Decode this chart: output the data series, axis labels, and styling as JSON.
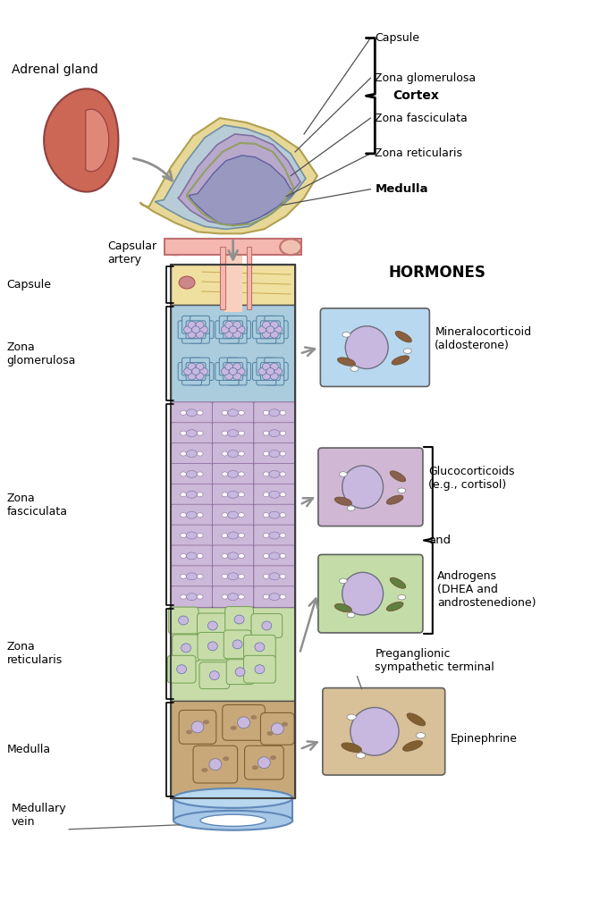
{
  "bg_color": "#ffffff",
  "labels": {
    "adrenal_gland": "Adrenal gland",
    "capsule_top": "Capsule",
    "zona_glomerulosa_top": "Zona glomerulosa",
    "zona_fasciculata_top": "Zona fasciculata",
    "cortex": "Cortex",
    "zona_reticularis_top": "Zona reticularis",
    "medulla_top": "Medulla",
    "capsular_artery": "Capsular\nartery",
    "hormones_title": "HORMONES",
    "capsule_side": "Capsule",
    "zona_glomerulosa_side": "Zona\nglomerulosa",
    "zona_fasciculata_side": "Zona\nfasciculata",
    "zona_reticularis_side": "Zona\nreticularis",
    "medulla_side": "Medulla",
    "medullary_vein": "Medullary\nvein",
    "mineralocorticoid": "Mineralocorticoid\n(aldosterone)",
    "glucocorticoids": "Glucocorticoids\n(e.g., cortisol)",
    "and_text": "and",
    "androgens": "Androgens\n(DHEA and\nandrostenedione)",
    "preganglionic": "Preganglionic\nsympathetic terminal",
    "epinephrine": "Epinephrine"
  },
  "colors": {
    "capsule_color": "#f0e0a0",
    "zona_glom_color": "#aaccdd",
    "zona_fasc_color": "#ccb8d8",
    "zona_retic_color": "#c8dcaa",
    "medulla_color": "#c8a878",
    "artery_color": "#f5b8b0",
    "vein_color": "#a8c8e8",
    "cell_blue": "#b8d8f0",
    "cell_purple": "#d0b8d4",
    "cell_green": "#c4dca8",
    "cell_tan": "#d8c098",
    "nucleus_color": "#c8b8e0",
    "outline_dark": "#505050",
    "arrow_color": "#909090",
    "kidney_red": "#cc6655",
    "kidney_inner": "#e08878",
    "adrenal_capsule": "#e8d898",
    "adrenal_glom": "#b8ccd8",
    "adrenal_fasc": "#b8a8cc",
    "adrenal_med": "#9898c0"
  }
}
